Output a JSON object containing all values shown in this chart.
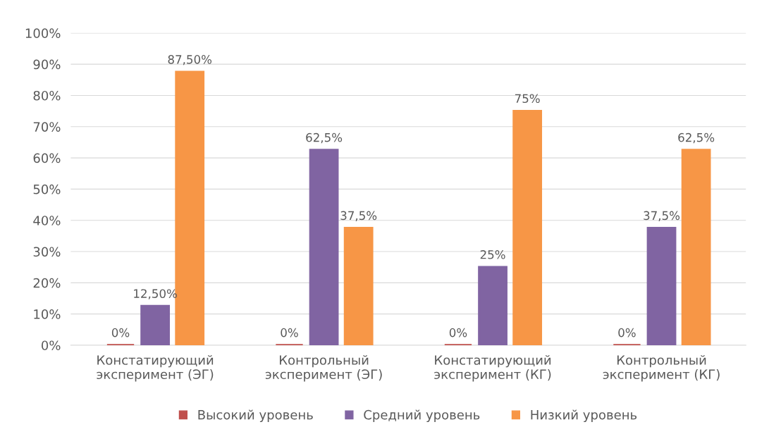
{
  "chart_data": {
    "type": "bar",
    "categories": [
      "Констатирующий\nэксперимент (ЭГ)",
      "Контрольный\nэксперимент (ЭГ)",
      "Констатирующий\nэксперимент (КГ)",
      "Контрольный\nэксперимент (КГ)"
    ],
    "series": [
      {
        "name": "Высокий уровень",
        "color": "#c0504d",
        "values": [
          0,
          0,
          0,
          0
        ],
        "value_labels": [
          "0%",
          "0%",
          "0%",
          "0%"
        ]
      },
      {
        "name": "Средний уровень",
        "color": "#8064a2",
        "values": [
          12.5,
          62.5,
          25,
          37.5
        ],
        "value_labels": [
          "12,50%",
          "62,5%",
          "25%",
          "37,5%"
        ]
      },
      {
        "name": "Низкий уровень",
        "color": "#f79646",
        "values": [
          87.5,
          37.5,
          75,
          62.5
        ],
        "value_labels": [
          "87,50%",
          "37,5%",
          "75%",
          "62,5%"
        ]
      }
    ],
    "ylim": [
      0,
      100
    ],
    "yticks": [
      {
        "value": 0,
        "label": "0%"
      },
      {
        "value": 10,
        "label": "10%"
      },
      {
        "value": 20,
        "label": "20%"
      },
      {
        "value": 30,
        "label": "30%"
      },
      {
        "value": 40,
        "label": "40%"
      },
      {
        "value": 50,
        "label": "50%"
      },
      {
        "value": 60,
        "label": "60%"
      },
      {
        "value": 70,
        "label": "70%"
      },
      {
        "value": 80,
        "label": "80%"
      },
      {
        "value": 90,
        "label": "90%"
      },
      {
        "value": 100,
        "label": "100%"
      }
    ],
    "grid": "y",
    "legend": "bottom"
  }
}
